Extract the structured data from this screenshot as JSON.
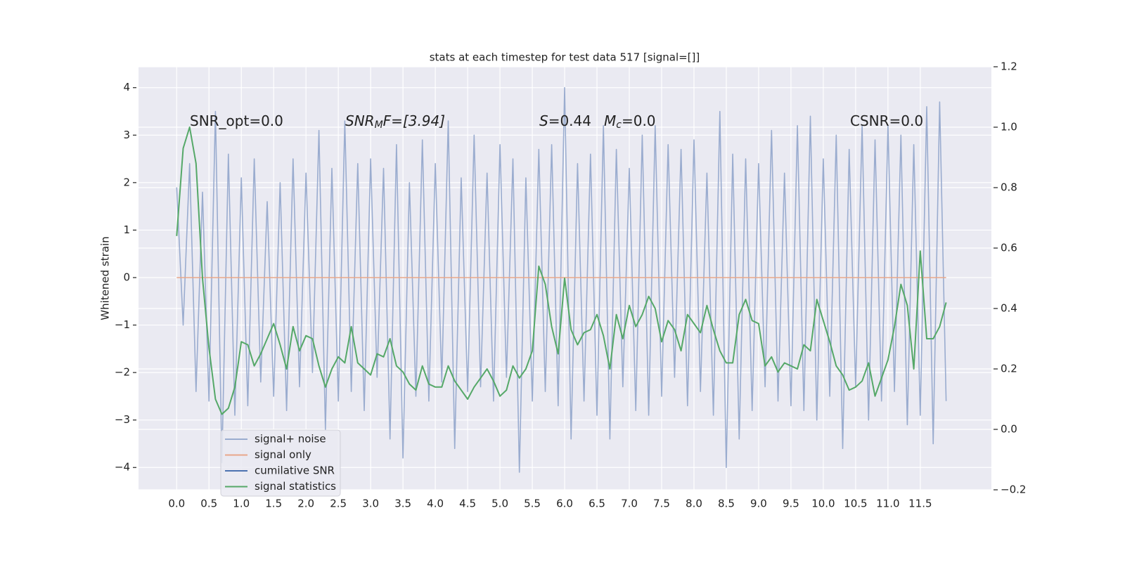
{
  "chart_data": {
    "type": "line",
    "title": "stats at each timestep for test data 517 [signal=[]]",
    "ylabel": "Whitened strain",
    "annotations": [
      {
        "rest": "SNR_opt=0.0"
      },
      {
        "main": "SNR",
        "sub": "M",
        "rest": "F=[3.94]"
      },
      {
        "main": "S",
        "rest": "=0.44"
      },
      {
        "main": "M",
        "sub": "c",
        "rest": "=0.0"
      },
      {
        "rest": "CSNR=0.0"
      }
    ],
    "xlim": [
      -0.59,
      12.6
    ],
    "ylim": [
      -4.47,
      4.44
    ],
    "y2lim": [
      -0.2,
      1.2
    ],
    "grid": true,
    "legend": "lower left",
    "xticks": [
      {
        "value": 0,
        "label": "0.0"
      },
      0.5,
      {
        "value": 1,
        "label": "1.0"
      },
      1.5,
      {
        "value": 2,
        "label": "2.0"
      },
      2.5,
      {
        "value": 3,
        "label": "3.0"
      },
      3.5,
      {
        "value": 4,
        "label": "4.0"
      },
      4.5,
      {
        "value": 5,
        "label": "5.0"
      },
      5.5,
      {
        "value": 6,
        "label": "6.0"
      },
      6.5,
      {
        "value": 7,
        "label": "7.0"
      },
      7.5,
      {
        "value": 8,
        "label": "8.0"
      },
      8.5,
      {
        "value": 9,
        "label": "9.0"
      },
      9.5,
      {
        "value": 10,
        "label": "10.0"
      },
      10.5,
      {
        "value": 11,
        "label": "11.0"
      },
      11.5
    ],
    "yticks": [
      {
        "value": -4,
        "label": "−4"
      },
      {
        "value": -3,
        "label": "−3"
      },
      {
        "value": -2,
        "label": "−2"
      },
      {
        "value": -1,
        "label": "−1"
      },
      0,
      1,
      2,
      3,
      4
    ],
    "y2ticks": [
      {
        "value": -0.2,
        "label": "−0.2"
      },
      {
        "value": 0,
        "label": "0.0"
      },
      0.2,
      0.4,
      0.6,
      0.8,
      {
        "value": 1,
        "label": "1.0"
      },
      1.2
    ],
    "x": [
      0,
      0.1,
      0.2,
      0.3,
      0.4,
      0.5,
      0.6,
      0.7,
      0.8,
      0.9,
      1,
      1.1,
      1.2,
      1.3,
      1.4,
      1.5,
      1.6,
      1.7,
      1.8,
      1.9,
      2,
      2.1,
      2.2,
      2.3,
      2.4,
      2.5,
      2.6,
      2.7,
      2.8,
      2.9,
      3,
      3.1,
      3.2,
      3.3,
      3.4,
      3.5,
      3.6,
      3.7,
      3.8,
      3.9,
      4,
      4.1,
      4.2,
      4.3,
      4.4,
      4.5,
      4.6,
      4.7,
      4.8,
      4.9,
      5,
      5.1,
      5.2,
      5.3,
      5.4,
      5.5,
      5.6,
      5.7,
      5.8,
      5.9,
      6,
      6.1,
      6.2,
      6.3,
      6.4,
      6.5,
      6.6,
      6.7,
      6.8,
      6.9,
      7,
      7.1,
      7.2,
      7.3,
      7.4,
      7.5,
      7.6,
      7.7,
      7.8,
      7.9,
      8,
      8.1,
      8.2,
      8.3,
      8.4,
      8.5,
      8.6,
      8.7,
      8.8,
      8.9,
      9,
      9.1,
      9.2,
      9.3,
      9.4,
      9.5,
      9.6,
      9.7,
      9.8,
      9.9,
      10,
      10.1,
      10.2,
      10.3,
      10.4,
      10.5,
      10.6,
      10.7,
      10.8,
      10.9,
      11,
      11.1,
      11.2,
      11.3,
      11.4,
      11.5,
      11.6,
      11.7,
      11.8,
      11.9
    ],
    "series": [
      {
        "name": "signal+ noise",
        "color": "#9aaccf",
        "axis": "y",
        "values": [
          1.9,
          -1.0,
          2.4,
          -2.4,
          1.8,
          -2.6,
          3.5,
          -3.9,
          2.6,
          -2.9,
          2.1,
          -2.7,
          2.5,
          -2.2,
          1.6,
          -2.5,
          2.0,
          -2.8,
          2.5,
          -2.3,
          2.2,
          -2.0,
          3.1,
          -3.2,
          2.3,
          -2.6,
          3.3,
          -2.4,
          2.4,
          -2.8,
          2.5,
          -2.1,
          2.3,
          -3.4,
          2.8,
          -3.8,
          2.0,
          -2.5,
          2.9,
          -2.6,
          2.4,
          -2.2,
          3.3,
          -3.6,
          2.1,
          -2.4,
          3.0,
          -2.3,
          2.2,
          -2.6,
          2.8,
          -2.1,
          2.5,
          -4.1,
          2.1,
          -2.6,
          2.7,
          -2.4,
          2.8,
          -2.7,
          4.0,
          -3.4,
          2.4,
          -2.6,
          2.6,
          -2.9,
          3.2,
          -3.4,
          2.7,
          -2.3,
          2.3,
          -2.8,
          3.0,
          -2.9,
          3.2,
          -2.5,
          2.8,
          -2.1,
          2.7,
          -2.7,
          2.9,
          -2.4,
          2.2,
          -2.9,
          3.5,
          -4.0,
          2.6,
          -3.4,
          2.5,
          -2.8,
          2.4,
          -2.3,
          3.1,
          -2.6,
          2.2,
          -2.7,
          3.2,
          -2.8,
          3.4,
          -3.0,
          2.5,
          -2.5,
          3.0,
          -3.6,
          2.7,
          -2.3,
          3.2,
          -3.0,
          2.9,
          -2.6,
          3.2,
          -2.4,
          3.0,
          -3.1,
          2.8,
          -2.9,
          3.6,
          -3.5,
          3.7,
          -2.6
        ]
      },
      {
        "name": "signal only",
        "color": "#e8a78a",
        "axis": "y",
        "values": [
          0,
          0,
          0,
          0,
          0,
          0,
          0,
          0,
          0,
          0,
          0,
          0,
          0,
          0,
          0,
          0,
          0,
          0,
          0,
          0,
          0,
          0,
          0,
          0,
          0,
          0,
          0,
          0,
          0,
          0,
          0,
          0,
          0,
          0,
          0,
          0,
          0,
          0,
          0,
          0,
          0,
          0,
          0,
          0,
          0,
          0,
          0,
          0,
          0,
          0,
          0,
          0,
          0,
          0,
          0,
          0,
          0,
          0,
          0,
          0,
          0,
          0,
          0,
          0,
          0,
          0,
          0,
          0,
          0,
          0,
          0,
          0,
          0,
          0,
          0,
          0,
          0,
          0,
          0,
          0,
          0,
          0,
          0,
          0,
          0,
          0,
          0,
          0,
          0,
          0,
          0,
          0,
          0,
          0,
          0,
          0,
          0,
          0,
          0,
          0,
          0,
          0,
          0,
          0,
          0,
          0,
          0,
          0,
          0,
          0,
          0,
          0,
          0,
          0,
          0,
          0,
          0,
          0,
          0,
          0
        ]
      },
      {
        "name": "cumilative SNR",
        "color": "#4c72b0",
        "axis": "y",
        "values": [
          null,
          null,
          null,
          null,
          null,
          null,
          null,
          null,
          null,
          null,
          null,
          null,
          null,
          null,
          null,
          null,
          null,
          null,
          null,
          null,
          null,
          null,
          null,
          null,
          null,
          null,
          null,
          null,
          null,
          null,
          null,
          null,
          null,
          null,
          null,
          null,
          null,
          null,
          null,
          null,
          null,
          null,
          null,
          null,
          null,
          null,
          null,
          null,
          null,
          null,
          null,
          null,
          null,
          null,
          null,
          null,
          null,
          null,
          null,
          null,
          null,
          null,
          null,
          null,
          null,
          null,
          null,
          null,
          null,
          null,
          null,
          null,
          null,
          null,
          null,
          null,
          null,
          null,
          null,
          null,
          null,
          null,
          null,
          null,
          null,
          null,
          null,
          null,
          null,
          null,
          null,
          null,
          null,
          null,
          null,
          null,
          null,
          null,
          null,
          null,
          null,
          null,
          null,
          null,
          null,
          null,
          null,
          null,
          null,
          null,
          null,
          null,
          null,
          null,
          null,
          null,
          null,
          null,
          null,
          null
        ]
      },
      {
        "name": "signal statistics",
        "color": "#55a868",
        "axis": "y2",
        "values": [
          0.64,
          0.93,
          1.0,
          0.88,
          0.5,
          0.27,
          0.1,
          0.05,
          0.07,
          0.14,
          0.29,
          0.28,
          0.21,
          0.25,
          0.3,
          0.35,
          0.28,
          0.2,
          0.34,
          0.26,
          0.31,
          0.3,
          0.21,
          0.14,
          0.2,
          0.24,
          0.22,
          0.34,
          0.22,
          0.2,
          0.18,
          0.25,
          0.24,
          0.3,
          0.21,
          0.19,
          0.15,
          0.13,
          0.21,
          0.15,
          0.14,
          0.14,
          0.21,
          0.16,
          0.13,
          0.1,
          0.14,
          0.17,
          0.2,
          0.16,
          0.11,
          0.13,
          0.21,
          0.17,
          0.2,
          0.26,
          0.54,
          0.48,
          0.34,
          0.25,
          0.5,
          0.33,
          0.28,
          0.32,
          0.33,
          0.38,
          0.31,
          0.2,
          0.38,
          0.3,
          0.41,
          0.34,
          0.38,
          0.44,
          0.4,
          0.29,
          0.36,
          0.33,
          0.26,
          0.38,
          0.35,
          0.32,
          0.41,
          0.33,
          0.26,
          0.22,
          0.22,
          0.38,
          0.43,
          0.36,
          0.35,
          0.21,
          0.24,
          0.19,
          0.22,
          0.21,
          0.2,
          0.28,
          0.26,
          0.43,
          0.36,
          0.29,
          0.21,
          0.18,
          0.13,
          0.14,
          0.16,
          0.22,
          0.11,
          0.17,
          0.23,
          0.34,
          0.48,
          0.41,
          0.2,
          0.59,
          0.3,
          0.3,
          0.34,
          0.42
        ]
      }
    ]
  }
}
